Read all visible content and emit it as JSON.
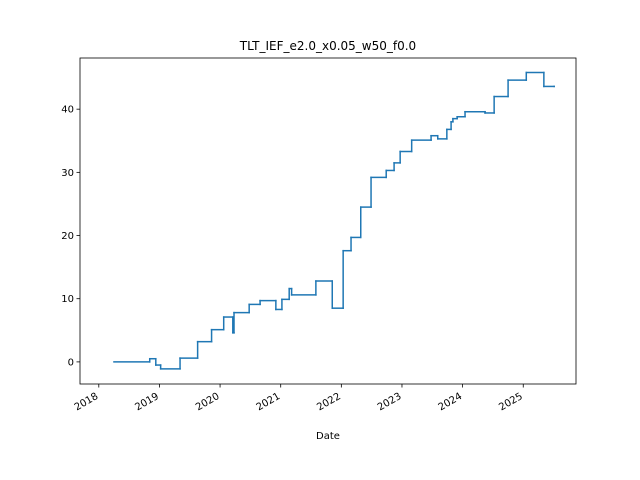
{
  "chart_data": {
    "type": "line",
    "drawstyle": "steps-post",
    "title": "TLT_IEF_e2.0_x0.05_w50_f0.0",
    "x_label": "Date",
    "series": [
      {
        "color": "#1f77b4",
        "x": [
          2018.25,
          2018.84,
          2018.94,
          2019.02,
          2019.34,
          2019.63,
          2019.86,
          2020.06,
          2020.21,
          2020.23,
          2020.48,
          2020.66,
          2020.92,
          2021.02,
          2021.14,
          2021.18,
          2021.58,
          2021.85,
          2022.03,
          2022.16,
          2022.32,
          2022.49,
          2022.74,
          2022.87,
          2022.97,
          2023.16,
          2023.48,
          2023.59,
          2023.74,
          2023.81,
          2023.84,
          2023.91,
          2024.04,
          2024.37,
          2024.52,
          2024.75,
          2025.05,
          2025.34,
          2025.51
        ],
        "values": [
          0,
          0.5,
          -0.5,
          -1.1,
          0.6,
          3.2,
          5.1,
          7.1,
          4.6,
          7.8,
          9.1,
          9.7,
          8.3,
          9.9,
          11.6,
          10.6,
          12.8,
          8.5,
          17.6,
          19.7,
          24.5,
          29.2,
          30.3,
          31.5,
          33.3,
          35.1,
          35.8,
          35.3,
          36.8,
          38,
          38.5,
          38.8,
          39.6,
          39.4,
          42,
          44.6,
          45.8,
          43.6,
          43.6
        ]
      }
    ],
    "xlim": [
      2017.69,
      2025.87
    ],
    "xticks": [
      2018,
      2019,
      2020,
      2021,
      2022,
      2023,
      2024,
      2025
    ],
    "ylim": [
      -3.5,
      48.1
    ],
    "yticks": [
      0,
      10,
      20,
      30,
      40
    ]
  }
}
